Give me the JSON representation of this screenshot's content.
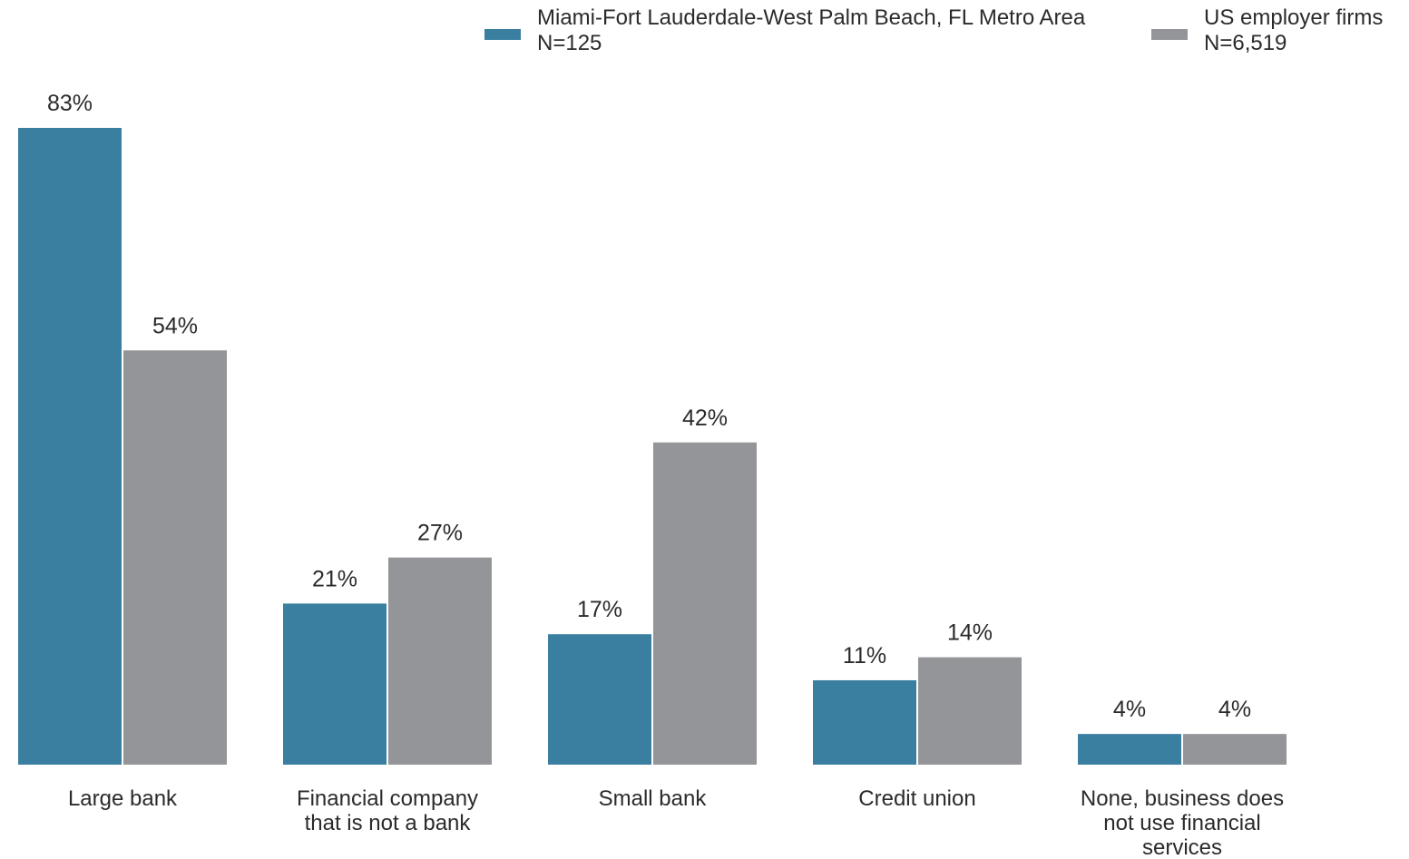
{
  "chart_data": {
    "type": "bar",
    "categories": [
      [
        "Large bank"
      ],
      [
        "Financial company",
        "that is not a bank"
      ],
      [
        "Small bank"
      ],
      [
        "Credit union"
      ],
      [
        "None, business does",
        "not use financial",
        "services"
      ]
    ],
    "series": [
      {
        "name": "Miami-Fort Lauderdale-West Palm Beach, FL Metro Area",
        "n_label": "N=125",
        "color": "#3a7fa0",
        "values": [
          83,
          21,
          17,
          11,
          4
        ],
        "labels": [
          "83%",
          "21%",
          "17%",
          "11%",
          "4%"
        ]
      },
      {
        "name": "US employer firms",
        "n_label": "N=6,519",
        "color": "#939598",
        "values": [
          54,
          27,
          42,
          14,
          4
        ],
        "labels": [
          "54%",
          "27%",
          "42%",
          "14%",
          "4%"
        ]
      }
    ],
    "ylim": [
      0,
      83
    ],
    "grid": false,
    "legend_position": "top-right",
    "title": "",
    "xlabel": "",
    "ylabel": ""
  }
}
